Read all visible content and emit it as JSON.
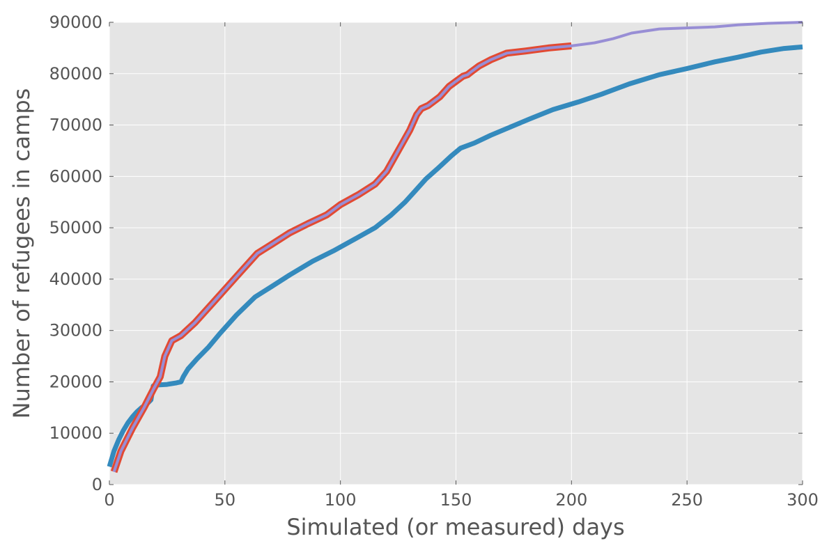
{
  "chart_data": {
    "type": "line",
    "xlabel": "Simulated (or measured) days",
    "ylabel": "Number of refugees in camps",
    "xlim": [
      0,
      300
    ],
    "ylim": [
      0,
      90000
    ],
    "xticks": [
      0,
      50,
      100,
      150,
      200,
      250,
      300
    ],
    "yticks": [
      0,
      10000,
      20000,
      30000,
      40000,
      50000,
      60000,
      70000,
      80000,
      90000
    ],
    "grid": true,
    "legend": "none",
    "background_color": "#e5e5e5",
    "series": [
      {
        "color": "#348abd",
        "width": 7,
        "points": [
          [
            0,
            3500
          ],
          [
            2,
            6500
          ],
          [
            4,
            8700
          ],
          [
            6,
            10500
          ],
          [
            8,
            12000
          ],
          [
            10,
            13200
          ],
          [
            12,
            14200
          ],
          [
            14,
            15000
          ],
          [
            16,
            15600
          ],
          [
            18,
            16500
          ],
          [
            19,
            19200
          ],
          [
            21,
            19400
          ],
          [
            25,
            19500
          ],
          [
            29,
            19800
          ],
          [
            31,
            20000
          ],
          [
            32,
            21000
          ],
          [
            34,
            22500
          ],
          [
            38,
            24500
          ],
          [
            43,
            26800
          ],
          [
            48,
            29500
          ],
          [
            55,
            33000
          ],
          [
            63,
            36500
          ],
          [
            70,
            38500
          ],
          [
            78,
            40800
          ],
          [
            88,
            43500
          ],
          [
            97,
            45500
          ],
          [
            105,
            47500
          ],
          [
            115,
            50000
          ],
          [
            122,
            52500
          ],
          [
            128,
            55000
          ],
          [
            132,
            57000
          ],
          [
            137,
            59500
          ],
          [
            142,
            61500
          ],
          [
            148,
            64000
          ],
          [
            152,
            65500
          ],
          [
            158,
            66500
          ],
          [
            165,
            68000
          ],
          [
            173,
            69500
          ],
          [
            182,
            71200
          ],
          [
            192,
            73000
          ],
          [
            203,
            74500
          ],
          [
            213,
            76000
          ],
          [
            225,
            78000
          ],
          [
            238,
            79800
          ],
          [
            250,
            81000
          ],
          [
            262,
            82300
          ],
          [
            272,
            83200
          ],
          [
            282,
            84200
          ],
          [
            292,
            84900
          ],
          [
            300,
            85200
          ]
        ]
      },
      {
        "color": "#e24a33",
        "width": 10,
        "points": [
          [
            2,
            2500
          ],
          [
            5,
            6500
          ],
          [
            10,
            11000
          ],
          [
            15,
            15000
          ],
          [
            19,
            18500
          ],
          [
            22,
            21000
          ],
          [
            24,
            25000
          ],
          [
            27,
            28000
          ],
          [
            31,
            29000
          ],
          [
            37,
            31500
          ],
          [
            45,
            35500
          ],
          [
            55,
            40500
          ],
          [
            64,
            45000
          ],
          [
            70,
            46700
          ],
          [
            78,
            49000
          ],
          [
            86,
            50800
          ],
          [
            94,
            52500
          ],
          [
            100,
            54500
          ],
          [
            108,
            56500
          ],
          [
            115,
            58500
          ],
          [
            120,
            61000
          ],
          [
            125,
            65000
          ],
          [
            130,
            69000
          ],
          [
            133,
            72000
          ],
          [
            135,
            73200
          ],
          [
            138,
            73800
          ],
          [
            143,
            75500
          ],
          [
            147,
            77500
          ],
          [
            150,
            78500
          ],
          [
            153,
            79500
          ],
          [
            155,
            79800
          ],
          [
            157,
            80500
          ],
          [
            160,
            81500
          ],
          [
            165,
            82700
          ],
          [
            172,
            84000
          ],
          [
            180,
            84400
          ],
          [
            190,
            85000
          ],
          [
            200,
            85400
          ]
        ]
      },
      {
        "color": "#988ed5",
        "width": 4,
        "points": [
          [
            2,
            2500
          ],
          [
            5,
            6500
          ],
          [
            10,
            11000
          ],
          [
            15,
            15000
          ],
          [
            19,
            18500
          ],
          [
            22,
            21000
          ],
          [
            24,
            25000
          ],
          [
            27,
            28000
          ],
          [
            31,
            29000
          ],
          [
            37,
            31500
          ],
          [
            45,
            35500
          ],
          [
            55,
            40500
          ],
          [
            64,
            45000
          ],
          [
            70,
            46700
          ],
          [
            78,
            49000
          ],
          [
            86,
            50800
          ],
          [
            94,
            52500
          ],
          [
            100,
            54500
          ],
          [
            108,
            56500
          ],
          [
            115,
            58500
          ],
          [
            120,
            61000
          ],
          [
            125,
            65000
          ],
          [
            130,
            69000
          ],
          [
            133,
            72000
          ],
          [
            135,
            73200
          ],
          [
            138,
            73800
          ],
          [
            143,
            75500
          ],
          [
            147,
            77500
          ],
          [
            150,
            78500
          ],
          [
            153,
            79500
          ],
          [
            155,
            79800
          ],
          [
            157,
            80500
          ],
          [
            160,
            81500
          ],
          [
            165,
            82700
          ],
          [
            172,
            84000
          ],
          [
            180,
            84400
          ],
          [
            190,
            85000
          ],
          [
            200,
            85400
          ],
          [
            210,
            86000
          ],
          [
            218,
            86800
          ],
          [
            226,
            87900
          ],
          [
            238,
            88700
          ],
          [
            250,
            88900
          ],
          [
            262,
            89100
          ],
          [
            272,
            89500
          ],
          [
            285,
            89800
          ],
          [
            300,
            90000
          ]
        ]
      }
    ]
  }
}
